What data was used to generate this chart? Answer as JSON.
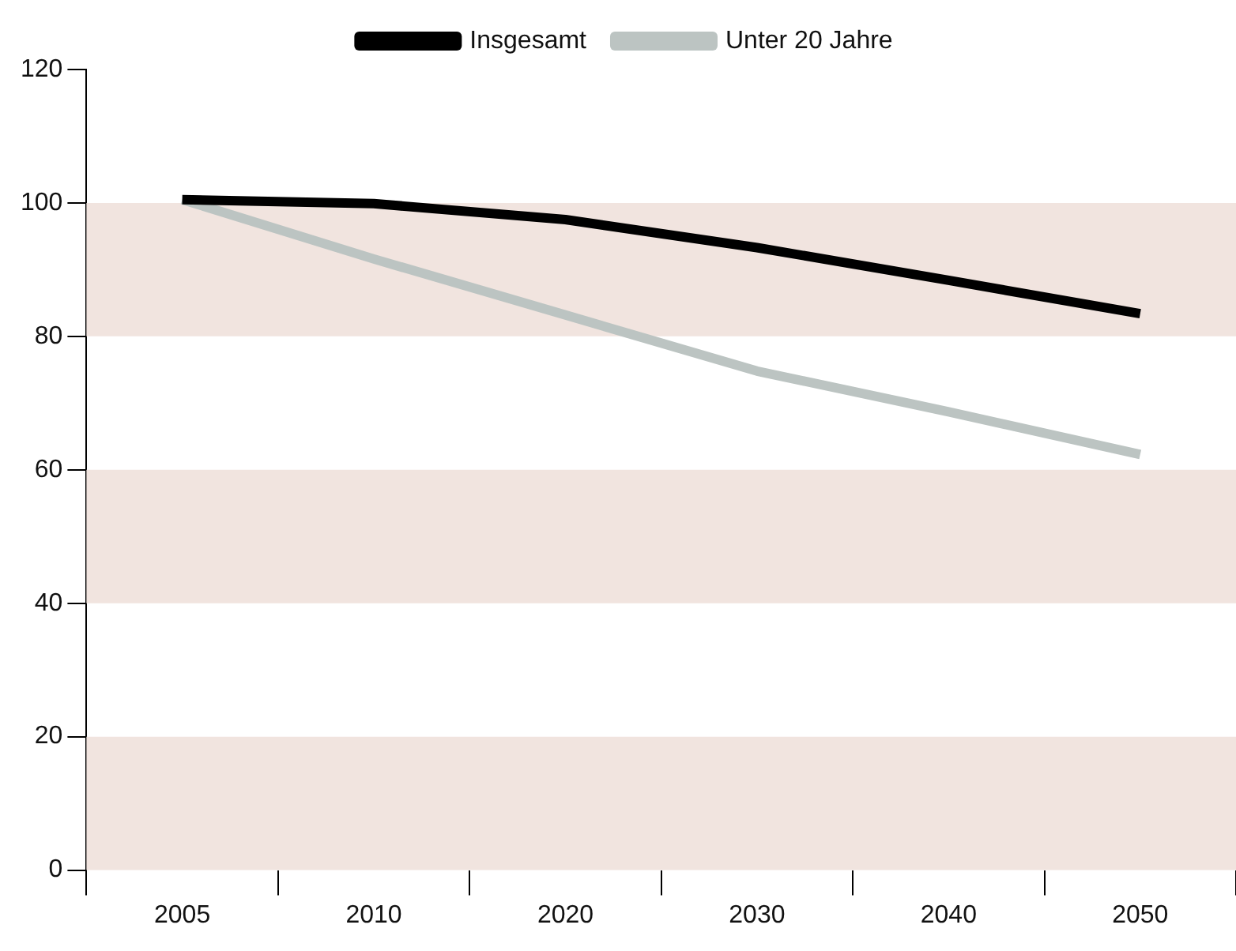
{
  "chart_data": {
    "type": "line",
    "categories": [
      "2005",
      "2010",
      "2020",
      "2030",
      "2040",
      "2050"
    ],
    "series": [
      {
        "name": "Insgesamt",
        "color": "#000000",
        "values": [
          100.5,
          99.9,
          97.5,
          93.3,
          88.4,
          83.4
        ]
      },
      {
        "name": "Unter 20 Jahre",
        "color": "#bcc4c2",
        "values": [
          100.5,
          91.6,
          83.2,
          74.8,
          68.7,
          62.3
        ]
      }
    ],
    "ylim": [
      0,
      120
    ],
    "yticks": [
      0,
      20,
      40,
      60,
      80,
      100,
      120
    ],
    "grid": false,
    "legend": "top",
    "marker": "none",
    "line_style": "solid",
    "bands": [
      {
        "axis": "y",
        "from": 0,
        "to": 20,
        "color": "#f1e4df"
      },
      {
        "axis": "y",
        "from": 40,
        "to": 60,
        "color": "#f1e4df"
      },
      {
        "axis": "y",
        "from": 80,
        "to": 100,
        "color": "#f1e4df"
      }
    ]
  }
}
